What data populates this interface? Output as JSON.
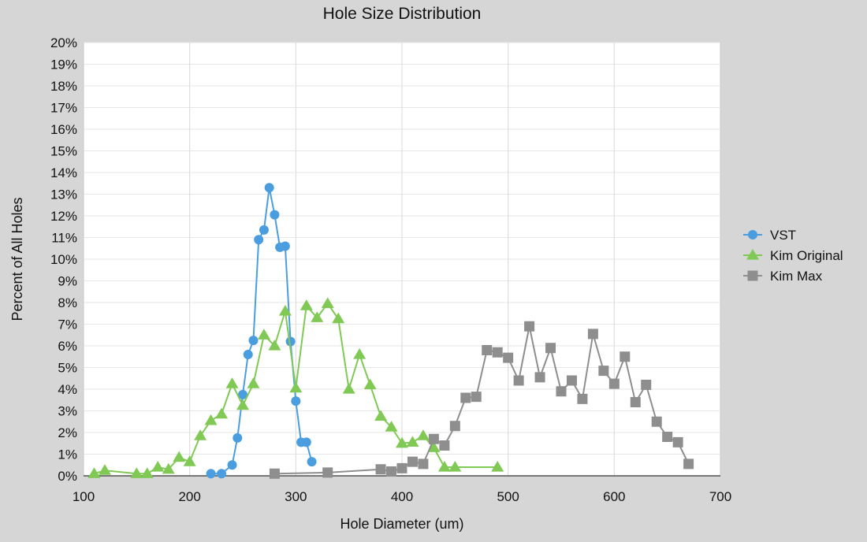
{
  "chart_data": {
    "type": "line",
    "title": "Hole Size Distribution",
    "xlabel": "Hole Diameter (um)",
    "ylabel": "Percent of All Holes",
    "xlim": [
      100,
      700
    ],
    "ylim": [
      0,
      20
    ],
    "xticks": [
      100,
      200,
      300,
      400,
      500,
      600,
      700
    ],
    "yticks": [
      0,
      1,
      2,
      3,
      4,
      5,
      6,
      7,
      8,
      9,
      10,
      11,
      12,
      13,
      14,
      15,
      16,
      17,
      18,
      19,
      20
    ],
    "y_tick_suffix": "%",
    "grid": "vertical and horizontal",
    "legend_position": "right",
    "series": [
      {
        "name": "VST",
        "marker": "circle",
        "color": "#4a9ee0",
        "points": [
          [
            220,
            0.1
          ],
          [
            230,
            0.1
          ],
          [
            240,
            0.5
          ],
          [
            245,
            1.75
          ],
          [
            250,
            3.75
          ],
          [
            255,
            5.6
          ],
          [
            260,
            6.25
          ],
          [
            265,
            10.9
          ],
          [
            270,
            11.35
          ],
          [
            275,
            13.3
          ],
          [
            280,
            12.05
          ],
          [
            285,
            10.55
          ],
          [
            290,
            10.6
          ],
          [
            295,
            6.2
          ],
          [
            300,
            3.45
          ],
          [
            305,
            1.55
          ],
          [
            310,
            1.55
          ],
          [
            315,
            0.65
          ]
        ]
      },
      {
        "name": "Kim Original",
        "marker": "triangle",
        "color": "#80c955",
        "points": [
          [
            110,
            0.1
          ],
          [
            120,
            0.25
          ],
          [
            150,
            0.1
          ],
          [
            160,
            0.1
          ],
          [
            170,
            0.4
          ],
          [
            180,
            0.3
          ],
          [
            190,
            0.85
          ],
          [
            200,
            0.65
          ],
          [
            210,
            1.85
          ],
          [
            220,
            2.55
          ],
          [
            230,
            2.85
          ],
          [
            240,
            4.25
          ],
          [
            250,
            3.25
          ],
          [
            260,
            4.25
          ],
          [
            270,
            6.5
          ],
          [
            280,
            6.0
          ],
          [
            290,
            7.6
          ],
          [
            300,
            4.05
          ],
          [
            310,
            7.85
          ],
          [
            320,
            7.3
          ],
          [
            330,
            7.95
          ],
          [
            340,
            7.25
          ],
          [
            350,
            4.0
          ],
          [
            360,
            5.6
          ],
          [
            370,
            4.2
          ],
          [
            380,
            2.75
          ],
          [
            390,
            2.25
          ],
          [
            400,
            1.5
          ],
          [
            410,
            1.55
          ],
          [
            420,
            1.85
          ],
          [
            430,
            1.3
          ],
          [
            440,
            0.4
          ],
          [
            450,
            0.4
          ],
          [
            490,
            0.4
          ]
        ]
      },
      {
        "name": "Kim Max",
        "marker": "square",
        "color": "#8e8e8e",
        "points": [
          [
            280,
            0.1
          ],
          [
            330,
            0.15
          ],
          [
            380,
            0.3
          ],
          [
            390,
            0.2
          ],
          [
            400,
            0.35
          ],
          [
            410,
            0.65
          ],
          [
            420,
            0.55
          ],
          [
            430,
            1.7
          ],
          [
            440,
            1.4
          ],
          [
            450,
            2.3
          ],
          [
            460,
            3.6
          ],
          [
            470,
            3.65
          ],
          [
            480,
            5.8
          ],
          [
            490,
            5.7
          ],
          [
            500,
            5.45
          ],
          [
            510,
            4.4
          ],
          [
            520,
            6.9
          ],
          [
            530,
            4.55
          ],
          [
            540,
            5.9
          ],
          [
            550,
            3.9
          ],
          [
            560,
            4.4
          ],
          [
            570,
            3.55
          ],
          [
            580,
            6.55
          ],
          [
            590,
            4.85
          ],
          [
            600,
            4.25
          ],
          [
            610,
            5.5
          ],
          [
            620,
            3.4
          ],
          [
            630,
            4.2
          ],
          [
            640,
            2.5
          ],
          [
            650,
            1.8
          ],
          [
            660,
            1.55
          ],
          [
            670,
            0.55
          ]
        ]
      }
    ]
  }
}
